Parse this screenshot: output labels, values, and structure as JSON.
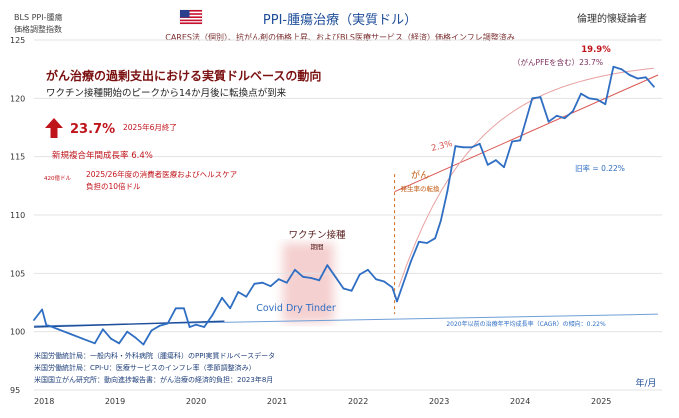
{
  "header": {
    "source_line1": "BLS PPI-腫瘍",
    "source_line2": "価格調整指数",
    "title": "PPI-腫瘍治療（実質ドル）",
    "subtitle": "CARES法（個別）、抗がん剤の価格上昇、およびBLS医療サービス（経済）価格インフレ調整済み",
    "author": "倫理的懐疑論者",
    "flag_icon": "us-flag-icon"
  },
  "panel": {
    "headline": "がん治療の過剰支出における実質ドルベースの動向",
    "subheadline": "ワクチン接種開始のピークから14か月後に転換点が到来",
    "big_pct": "23.7%",
    "big_pct_note": "2025年6月終了",
    "cagr_line": "新規複合年間成長率 6.4%",
    "small_note": "420億ドル",
    "bill_line1": "2025/26年度の消費者医療およびヘルスケア",
    "bill_line2": "負担の10倍ドル"
  },
  "annotations": {
    "vaccine_label": "ワクチン接種",
    "vaccine_sub": "期間",
    "covid_label": "Covid Dry Tinder",
    "cancer_label": "がん",
    "cancer_sub": "発生率の転換",
    "trend_pct": "2.3%",
    "old_rate": "旧率 = 0.22%",
    "cagr_baseline": "2020年以前の治療年平均成長率（CAGR）の傾向：0.22%",
    "peak_pct": "19.9%",
    "pfe_label": "（がんPFEを含む）23.7%",
    "xaxis_unit": "年/月"
  },
  "sources": [
    "米国労働統計局：一般内科・外科病院（腫瘍科）のPPI実質ドルベースデータ",
    "米国労働統計局：CPI-U：医療サービスのインフレ率（季節調整済み）",
    "米国国立がん研究所：動向進捗報告書：がん治療の経済的負担：2023年8月"
  ],
  "colors": {
    "series": "#2f6ec2",
    "title_blue": "#1f4e9a",
    "accent_red": "#c0141b",
    "trend_red": "#d9534f",
    "baseline": "#6f9fd8",
    "vaccine_band": "#f3c8c8",
    "grid": "#e3e3e3"
  },
  "chart_data": {
    "type": "line",
    "title": "PPI-腫瘍治療（実質ドル）",
    "xlabel": "年/月",
    "ylabel": "",
    "xlim": [
      2018.0,
      2025.75
    ],
    "ylim": [
      95,
      125
    ],
    "yticks": [
      95,
      100,
      105,
      110,
      115,
      120,
      125
    ],
    "xticks": [
      {
        "label": "2018",
        "x": 2018.0
      },
      {
        "label": "2019",
        "x": 2019.0
      },
      {
        "label": "2020",
        "x": 2020.0
      },
      {
        "label": "2021",
        "x": 2021.0
      },
      {
        "label": "2022",
        "x": 2022.0
      },
      {
        "label": "2023",
        "x": 2023.0
      },
      {
        "label": "2024",
        "x": 2024.0
      },
      {
        "label": "2025",
        "x": 2025.0
      }
    ],
    "vaccine_period": [
      2021.07,
      2021.7
    ],
    "turning_point_x": 2022.45,
    "series": [
      {
        "name": "PPI-腫瘍治療（実質ドル）",
        "x": [
          2018.0,
          2018.1,
          2018.15,
          2018.3,
          2018.45,
          2018.6,
          2018.75,
          2018.85,
          2018.95,
          2019.05,
          2019.15,
          2019.25,
          2019.35,
          2019.45,
          2019.55,
          2019.65,
          2019.75,
          2019.85,
          2019.92,
          2020.0,
          2020.1,
          2020.2,
          2020.32,
          2020.42,
          2020.52,
          2020.62,
          2020.72,
          2020.82,
          2020.92,
          2021.02,
          2021.12,
          2021.22,
          2021.32,
          2021.42,
          2021.52,
          2021.62,
          2021.72,
          2021.82,
          2021.92,
          2022.02,
          2022.12,
          2022.22,
          2022.32,
          2022.42,
          2022.48,
          2022.55,
          2022.65,
          2022.75,
          2022.85,
          2022.95,
          2023.02,
          2023.1,
          2023.2,
          2023.3,
          2023.4,
          2023.5,
          2023.6,
          2023.7,
          2023.8,
          2023.9,
          2024.0,
          2024.07,
          2024.15,
          2024.25,
          2024.35,
          2024.45,
          2024.55,
          2024.65,
          2024.75,
          2024.85,
          2024.95,
          2025.05,
          2025.15,
          2025.25,
          2025.35,
          2025.45,
          2025.55,
          2025.65
        ],
        "values": [
          101.0,
          101.9,
          100.6,
          100.2,
          99.8,
          99.4,
          99.0,
          100.2,
          99.4,
          99.0,
          100.0,
          99.5,
          98.9,
          100.1,
          100.5,
          100.7,
          102.0,
          102.0,
          100.4,
          100.6,
          100.4,
          101.4,
          102.9,
          102.0,
          103.4,
          103.0,
          104.1,
          104.2,
          103.9,
          104.5,
          104.2,
          105.3,
          104.7,
          104.6,
          104.4,
          105.7,
          104.7,
          103.7,
          103.5,
          104.9,
          105.3,
          104.5,
          104.3,
          103.8,
          102.6,
          104.0,
          106.0,
          107.7,
          107.6,
          108.0,
          109.5,
          112.0,
          115.9,
          115.8,
          115.8,
          116.1,
          114.3,
          114.7,
          114.1,
          116.3,
          116.4,
          118.1,
          120.0,
          120.1,
          118.0,
          118.5,
          118.3,
          118.9,
          120.4,
          120.0,
          119.9,
          119.5,
          122.7,
          122.5,
          122.0,
          121.7,
          121.8,
          121.0
        ]
      }
    ],
    "trend_lines": [
      {
        "name": "2.3%",
        "x": [
          2022.45,
          2025.7
        ],
        "values": [
          112.0,
          122.0
        ]
      },
      {
        "name": "旧率 = 0.22%",
        "x": [
          2018.0,
          2025.7
        ],
        "values": [
          100.5,
          101.5
        ]
      },
      {
        "name": "pre-2020 fit",
        "x": [
          2018.0,
          2020.35
        ],
        "values": [
          100.4,
          100.9
        ]
      }
    ]
  }
}
